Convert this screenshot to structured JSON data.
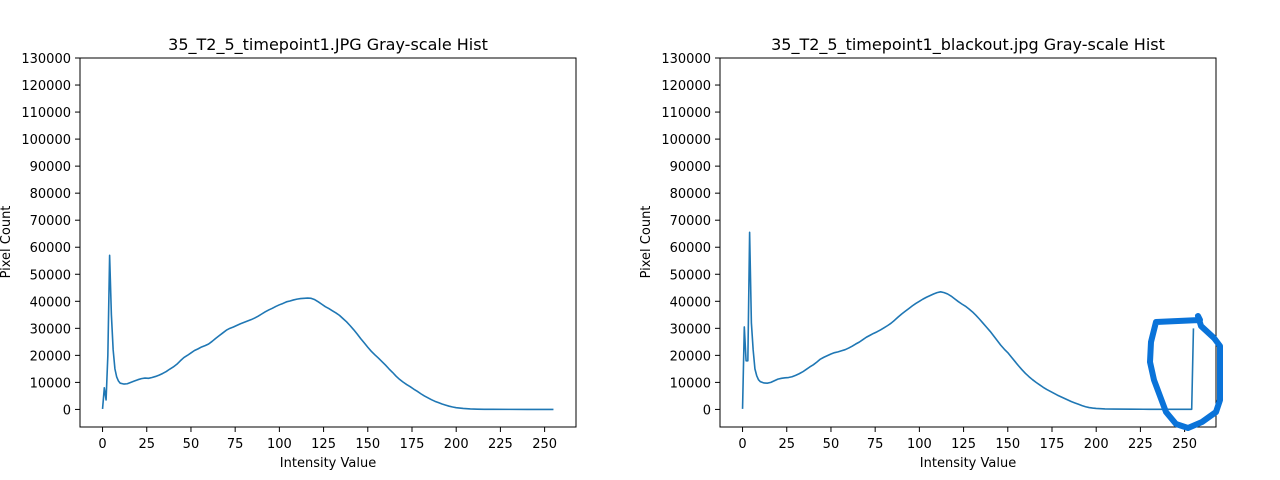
{
  "chart_data": [
    {
      "type": "line",
      "title": "35_T2_5_timepoint1.JPG Gray-scale Hist",
      "xlabel": "Intensity Value",
      "ylabel": "Pixel Count",
      "xlim": [
        -12.75,
        267.75
      ],
      "ylim": [
        -6500,
        130000
      ],
      "xticks": [
        0,
        25,
        50,
        75,
        100,
        125,
        150,
        175,
        200,
        225,
        250
      ],
      "yticks": [
        0,
        10000,
        20000,
        30000,
        40000,
        50000,
        60000,
        70000,
        80000,
        90000,
        100000,
        110000,
        120000,
        130000
      ],
      "grid": false,
      "series": [
        {
          "color": "#1f77b4",
          "points": [
            [
              0,
              200
            ],
            [
              1,
              8000
            ],
            [
              2,
              3500
            ],
            [
              3,
              20000
            ],
            [
              4,
              57000
            ],
            [
              5,
              35000
            ],
            [
              6,
              22000
            ],
            [
              7,
              15000
            ],
            [
              8,
              12000
            ],
            [
              9,
              10500
            ],
            [
              10,
              9700
            ],
            [
              12,
              9400
            ],
            [
              14,
              9500
            ],
            [
              16,
              10000
            ],
            [
              18,
              10500
            ],
            [
              20,
              11000
            ],
            [
              22,
              11400
            ],
            [
              24,
              11600
            ],
            [
              26,
              11500
            ],
            [
              28,
              11800
            ],
            [
              30,
              12200
            ],
            [
              32,
              12700
            ],
            [
              34,
              13300
            ],
            [
              36,
              14000
            ],
            [
              38,
              14900
            ],
            [
              40,
              15700
            ],
            [
              42,
              16700
            ],
            [
              44,
              18000
            ],
            [
              46,
              19200
            ],
            [
              48,
              20000
            ],
            [
              50,
              20900
            ],
            [
              52,
              21800
            ],
            [
              54,
              22400
            ],
            [
              56,
              23100
            ],
            [
              58,
              23600
            ],
            [
              60,
              24200
            ],
            [
              62,
              25200
            ],
            [
              64,
              26300
            ],
            [
              66,
              27300
            ],
            [
              68,
              28300
            ],
            [
              70,
              29300
            ],
            [
              72,
              30000
            ],
            [
              74,
              30500
            ],
            [
              76,
              31100
            ],
            [
              78,
              31700
            ],
            [
              80,
              32200
            ],
            [
              82,
              32700
            ],
            [
              84,
              33200
            ],
            [
              86,
              33800
            ],
            [
              88,
              34500
            ],
            [
              90,
              35300
            ],
            [
              92,
              36100
            ],
            [
              94,
              36800
            ],
            [
              96,
              37400
            ],
            [
              98,
              38100
            ],
            [
              100,
              38700
            ],
            [
              102,
              39200
            ],
            [
              104,
              39800
            ],
            [
              106,
              40100
            ],
            [
              108,
              40500
            ],
            [
              110,
              40800
            ],
            [
              112,
              41000
            ],
            [
              114,
              41100
            ],
            [
              116,
              41200
            ],
            [
              118,
              41100
            ],
            [
              120,
              40600
            ],
            [
              122,
              39800
            ],
            [
              124,
              38900
            ],
            [
              126,
              38000
            ],
            [
              128,
              37300
            ],
            [
              130,
              36500
            ],
            [
              132,
              35700
            ],
            [
              134,
              34800
            ],
            [
              136,
              33600
            ],
            [
              138,
              32400
            ],
            [
              140,
              31000
            ],
            [
              142,
              29500
            ],
            [
              144,
              27900
            ],
            [
              146,
              26200
            ],
            [
              148,
              24600
            ],
            [
              150,
              23000
            ],
            [
              152,
              21500
            ],
            [
              154,
              20200
            ],
            [
              156,
              19000
            ],
            [
              158,
              17700
            ],
            [
              160,
              16400
            ],
            [
              162,
              15000
            ],
            [
              164,
              13700
            ],
            [
              166,
              12300
            ],
            [
              168,
              11100
            ],
            [
              170,
              10100
            ],
            [
              172,
              9200
            ],
            [
              174,
              8400
            ],
            [
              176,
              7500
            ],
            [
              178,
              6700
            ],
            [
              180,
              5800
            ],
            [
              182,
              5000
            ],
            [
              184,
              4300
            ],
            [
              186,
              3600
            ],
            [
              188,
              3000
            ],
            [
              190,
              2500
            ],
            [
              192,
              2000
            ],
            [
              194,
              1600
            ],
            [
              196,
              1200
            ],
            [
              198,
              900
            ],
            [
              200,
              650
            ],
            [
              204,
              350
            ],
            [
              208,
              180
            ],
            [
              212,
              100
            ],
            [
              216,
              60
            ],
            [
              220,
              40
            ],
            [
              230,
              20
            ],
            [
              240,
              10
            ],
            [
              255,
              0
            ]
          ]
        }
      ]
    },
    {
      "type": "line",
      "title": "35_T2_5_timepoint1_blackout.jpg Gray-scale Hist",
      "xlabel": "Intensity Value",
      "ylabel": "Pixel Count",
      "xlim": [
        -12.75,
        267.75
      ],
      "ylim": [
        -6500,
        130000
      ],
      "xticks": [
        0,
        25,
        50,
        75,
        100,
        125,
        150,
        175,
        200,
        225,
        250
      ],
      "yticks": [
        0,
        10000,
        20000,
        30000,
        40000,
        50000,
        60000,
        70000,
        80000,
        90000,
        100000,
        110000,
        120000,
        130000
      ],
      "grid": false,
      "series": [
        {
          "color": "#1f77b4",
          "points": [
            [
              0,
              200
            ],
            [
              1,
              30500
            ],
            [
              2,
              18000
            ],
            [
              3,
              18000
            ],
            [
              4,
              65500
            ],
            [
              5,
              32000
            ],
            [
              6,
              22000
            ],
            [
              7,
              15000
            ],
            [
              8,
              12500
            ],
            [
              9,
              11000
            ],
            [
              10,
              10300
            ],
            [
              12,
              9800
            ],
            [
              14,
              9700
            ],
            [
              16,
              10000
            ],
            [
              18,
              10600
            ],
            [
              20,
              11200
            ],
            [
              22,
              11500
            ],
            [
              24,
              11700
            ],
            [
              26,
              11800
            ],
            [
              28,
              12100
            ],
            [
              30,
              12600
            ],
            [
              32,
              13200
            ],
            [
              34,
              13900
            ],
            [
              36,
              14800
            ],
            [
              38,
              15700
            ],
            [
              40,
              16500
            ],
            [
              42,
              17500
            ],
            [
              44,
              18600
            ],
            [
              46,
              19300
            ],
            [
              48,
              19900
            ],
            [
              50,
              20500
            ],
            [
              52,
              21000
            ],
            [
              54,
              21300
            ],
            [
              56,
              21700
            ],
            [
              58,
              22100
            ],
            [
              60,
              22700
            ],
            [
              62,
              23400
            ],
            [
              64,
              24200
            ],
            [
              66,
              24900
            ],
            [
              68,
              25800
            ],
            [
              70,
              26700
            ],
            [
              72,
              27400
            ],
            [
              74,
              28100
            ],
            [
              76,
              28700
            ],
            [
              78,
              29400
            ],
            [
              80,
              30200
            ],
            [
              82,
              31000
            ],
            [
              84,
              31900
            ],
            [
              86,
              33000
            ],
            [
              88,
              34200
            ],
            [
              90,
              35300
            ],
            [
              92,
              36300
            ],
            [
              94,
              37300
            ],
            [
              96,
              38300
            ],
            [
              98,
              39200
            ],
            [
              100,
              40000
            ],
            [
              102,
              40800
            ],
            [
              104,
              41500
            ],
            [
              106,
              42100
            ],
            [
              108,
              42700
            ],
            [
              110,
              43200
            ],
            [
              112,
              43500
            ],
            [
              114,
              43200
            ],
            [
              116,
              42700
            ],
            [
              118,
              41900
            ],
            [
              120,
              40900
            ],
            [
              122,
              39900
            ],
            [
              124,
              39000
            ],
            [
              126,
              38200
            ],
            [
              128,
              37200
            ],
            [
              130,
              36100
            ],
            [
              132,
              34800
            ],
            [
              134,
              33400
            ],
            [
              136,
              31900
            ],
            [
              138,
              30400
            ],
            [
              140,
              28900
            ],
            [
              142,
              27200
            ],
            [
              144,
              25500
            ],
            [
              146,
              23800
            ],
            [
              148,
              22300
            ],
            [
              150,
              21000
            ],
            [
              152,
              19400
            ],
            [
              154,
              17800
            ],
            [
              156,
              16200
            ],
            [
              158,
              14700
            ],
            [
              160,
              13300
            ],
            [
              162,
              12100
            ],
            [
              164,
              11000
            ],
            [
              166,
              10000
            ],
            [
              168,
              9100
            ],
            [
              170,
              8200
            ],
            [
              172,
              7400
            ],
            [
              174,
              6700
            ],
            [
              176,
              6000
            ],
            [
              178,
              5300
            ],
            [
              180,
              4700
            ],
            [
              182,
              4100
            ],
            [
              184,
              3500
            ],
            [
              186,
              2900
            ],
            [
              188,
              2400
            ],
            [
              190,
              1900
            ],
            [
              192,
              1400
            ],
            [
              194,
              1000
            ],
            [
              196,
              700
            ],
            [
              198,
              500
            ],
            [
              200,
              350
            ],
            [
              205,
              200
            ],
            [
              210,
              120
            ],
            [
              220,
              80
            ],
            [
              230,
              60
            ],
            [
              240,
              60
            ],
            [
              254,
              60
            ],
            [
              255,
              30000
            ]
          ]
        }
      ]
    }
  ]
}
